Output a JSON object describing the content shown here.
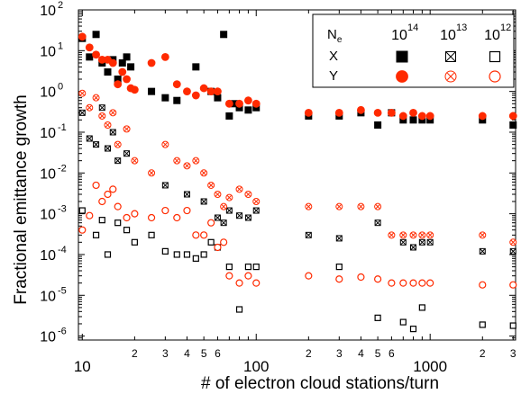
{
  "chart_data": {
    "type": "scatter",
    "xlabel": "# of electron cloud stations/turn",
    "ylabel": "Fractional emittance growth",
    "x_scale": "log",
    "y_scale": "log",
    "xlim": [
      9.5,
      3100
    ],
    "ylim": [
      8e-07,
      100
    ],
    "x_tick_labels": [
      {
        "v": 10,
        "t": "10",
        "major": true
      },
      {
        "v": 20,
        "t": "2"
      },
      {
        "v": 30,
        "t": "3"
      },
      {
        "v": 40,
        "t": "4"
      },
      {
        "v": 50,
        "t": "5"
      },
      {
        "v": 60,
        "t": "6"
      },
      {
        "v": 100,
        "t": "100",
        "major": true
      },
      {
        "v": 200,
        "t": "2"
      },
      {
        "v": 300,
        "t": "3"
      },
      {
        "v": 400,
        "t": "4"
      },
      {
        "v": 500,
        "t": "5"
      },
      {
        "v": 600,
        "t": "6"
      },
      {
        "v": 1000,
        "t": "1000",
        "major": true
      },
      {
        "v": 2000,
        "t": "2"
      },
      {
        "v": 3000,
        "t": "3"
      }
    ],
    "y_tick_labels": [
      {
        "v": 1e-06,
        "b": "10",
        "e": "-6"
      },
      {
        "v": 1e-05,
        "b": "10",
        "e": "-5"
      },
      {
        "v": 0.0001,
        "b": "10",
        "e": "-4"
      },
      {
        "v": 0.001,
        "b": "10",
        "e": "-3"
      },
      {
        "v": 0.01,
        "b": "10",
        "e": "-2"
      },
      {
        "v": 0.1,
        "b": "10",
        "e": "-1"
      },
      {
        "v": 1,
        "b": "10",
        "e": "0"
      },
      {
        "v": 10,
        "b": "10",
        "e": "1"
      },
      {
        "v": 100,
        "b": "10",
        "e": "2"
      }
    ],
    "legend": {
      "placement": "top-right",
      "header_label": "N",
      "header_sub": "e",
      "columns": [
        {
          "base": "10",
          "exp": "14"
        },
        {
          "base": "10",
          "exp": "13"
        },
        {
          "base": "10",
          "exp": "12"
        }
      ],
      "rows": [
        "X",
        "Y"
      ]
    },
    "colors": {
      "X": "#000000",
      "Y": "#ff2a00"
    },
    "series": [
      {
        "plane": "X",
        "ne": "1e14",
        "marker": "filled-square",
        "points": [
          [
            10,
            20
          ],
          [
            11,
            7
          ],
          [
            12,
            25
          ],
          [
            13,
            5
          ],
          [
            14,
            3
          ],
          [
            15,
            6
          ],
          [
            16,
            2
          ],
          [
            17,
            5
          ],
          [
            18,
            7
          ],
          [
            19,
            4
          ],
          [
            25,
            1
          ],
          [
            30,
            0.7
          ],
          [
            35,
            0.6
          ],
          [
            45,
            4
          ],
          [
            55,
            1
          ],
          [
            60,
            0.7
          ],
          [
            65,
            25
          ],
          [
            70,
            0.25
          ],
          [
            75,
            0.5
          ],
          [
            80,
            0.4
          ],
          [
            90,
            0.35
          ],
          [
            100,
            0.4
          ],
          [
            200,
            0.25
          ],
          [
            300,
            0.25
          ],
          [
            400,
            0.3
          ],
          [
            500,
            0.15
          ],
          [
            600,
            0.3
          ],
          [
            700,
            0.2
          ],
          [
            800,
            0.2
          ],
          [
            900,
            0.2
          ],
          [
            1000,
            0.2
          ],
          [
            2000,
            0.2
          ],
          [
            3000,
            0.15
          ]
        ]
      },
      {
        "plane": "X",
        "ne": "1e13",
        "marker": "crossed-square",
        "points": [
          [
            10,
            0.3
          ],
          [
            11,
            0.07
          ],
          [
            12,
            0.05
          ],
          [
            13,
            0.4
          ],
          [
            14,
            0.04
          ],
          [
            15,
            0.1
          ],
          [
            16,
            0.02
          ],
          [
            18,
            0.03
          ],
          [
            30,
            0.005
          ],
          [
            40,
            0.003
          ],
          [
            50,
            0.002
          ],
          [
            60,
            0.0008
          ],
          [
            65,
            0.0006
          ],
          [
            70,
            0.0012
          ],
          [
            80,
            0.0009
          ],
          [
            90,
            0.0008
          ],
          [
            100,
            0.0012
          ],
          [
            200,
            0.0003
          ],
          [
            300,
            0.00025
          ],
          [
            500,
            0.0006
          ],
          [
            700,
            0.0002
          ],
          [
            800,
            0.00015
          ],
          [
            900,
            0.0002
          ],
          [
            1000,
            0.0002
          ],
          [
            2000,
            0.00012
          ],
          [
            3000,
            0.00012
          ]
        ]
      },
      {
        "plane": "X",
        "ne": "1e12",
        "marker": "open-square",
        "points": [
          [
            10,
            0.0012
          ],
          [
            12,
            0.0003
          ],
          [
            13,
            0.0007
          ],
          [
            14,
            0.0001
          ],
          [
            16,
            0.0006
          ],
          [
            18,
            0.0004
          ],
          [
            20,
            0.0002
          ],
          [
            25,
            0.0003
          ],
          [
            30,
            0.00012
          ],
          [
            35,
            0.0001
          ],
          [
            40,
            0.0001
          ],
          [
            45,
            8e-05
          ],
          [
            50,
            0.0001
          ],
          [
            55,
            0.0002
          ],
          [
            60,
            0.00015
          ],
          [
            70,
            5e-05
          ],
          [
            80,
            4.5e-06
          ],
          [
            90,
            5e-05
          ],
          [
            100,
            5e-05
          ],
          [
            300,
            5e-05
          ],
          [
            500,
            2.8e-06
          ],
          [
            700,
            2.2e-06
          ],
          [
            800,
            1.5e-06
          ],
          [
            900,
            5e-06
          ],
          [
            2000,
            1.9e-06
          ],
          [
            3000,
            1.8e-06
          ]
        ]
      },
      {
        "plane": "Y",
        "ne": "1e14",
        "marker": "filled-circle",
        "points": [
          [
            10,
            22
          ],
          [
            11,
            12
          ],
          [
            12,
            8
          ],
          [
            13,
            6
          ],
          [
            14,
            6
          ],
          [
            15,
            5
          ],
          [
            16,
            1.5
          ],
          [
            17,
            3
          ],
          [
            18,
            2
          ],
          [
            19,
            1.2
          ],
          [
            20,
            1.1
          ],
          [
            25,
            5
          ],
          [
            30,
            7
          ],
          [
            35,
            1.5
          ],
          [
            40,
            1
          ],
          [
            45,
            0.8
          ],
          [
            50,
            1.2
          ],
          [
            55,
            1
          ],
          [
            60,
            1
          ],
          [
            70,
            0.5
          ],
          [
            80,
            0.5
          ],
          [
            90,
            0.6
          ],
          [
            100,
            0.5
          ],
          [
            200,
            0.3
          ],
          [
            300,
            0.3
          ],
          [
            400,
            0.35
          ],
          [
            500,
            0.3
          ],
          [
            600,
            0.3
          ],
          [
            700,
            0.25
          ],
          [
            800,
            0.3
          ],
          [
            900,
            0.25
          ],
          [
            1000,
            0.25
          ],
          [
            2000,
            0.25
          ],
          [
            3000,
            0.25
          ]
        ]
      },
      {
        "plane": "Y",
        "ne": "1e13",
        "marker": "crossed-circle",
        "points": [
          [
            10,
            0.9
          ],
          [
            11,
            0.4
          ],
          [
            12,
            0.7
          ],
          [
            13,
            0.25
          ],
          [
            14,
            0.15
          ],
          [
            15,
            0.3
          ],
          [
            16,
            0.05
          ],
          [
            18,
            0.12
          ],
          [
            20,
            0.02
          ],
          [
            25,
            0.01
          ],
          [
            30,
            0.05
          ],
          [
            35,
            0.02
          ],
          [
            40,
            0.015
          ],
          [
            45,
            0.02
          ],
          [
            50,
            0.01
          ],
          [
            55,
            0.005
          ],
          [
            60,
            0.003
          ],
          [
            65,
            0.0015
          ],
          [
            70,
            0.0025
          ],
          [
            80,
            0.004
          ],
          [
            90,
            0.003
          ],
          [
            100,
            0.002
          ],
          [
            200,
            0.0015
          ],
          [
            300,
            0.0015
          ],
          [
            400,
            0.0015
          ],
          [
            500,
            0.0015
          ],
          [
            600,
            0.0003
          ],
          [
            700,
            0.0003
          ],
          [
            800,
            0.0003
          ],
          [
            900,
            0.0003
          ],
          [
            1000,
            0.0003
          ],
          [
            2000,
            0.0003
          ],
          [
            3000,
            0.0002
          ]
        ]
      },
      {
        "plane": "Y",
        "ne": "1e12",
        "marker": "open-circle",
        "points": [
          [
            10,
            0.0004
          ],
          [
            11,
            0.0009
          ],
          [
            12,
            0.005
          ],
          [
            13,
            0.002
          ],
          [
            14,
            0.003
          ],
          [
            15,
            0.004
          ],
          [
            16,
            0.0015
          ],
          [
            18,
            0.0008
          ],
          [
            20,
            0.001
          ],
          [
            25,
            0.0008
          ],
          [
            30,
            0.0012
          ],
          [
            35,
            0.0008
          ],
          [
            40,
            0.0012
          ],
          [
            45,
            0.0003
          ],
          [
            50,
            0.0003
          ],
          [
            55,
            0.0006
          ],
          [
            60,
            0.00015
          ],
          [
            65,
            0.0002
          ],
          [
            70,
            3e-05
          ],
          [
            80,
            2e-05
          ],
          [
            90,
            3e-05
          ],
          [
            100,
            2e-05
          ],
          [
            200,
            3e-05
          ],
          [
            300,
            2.5e-05
          ],
          [
            400,
            2.8e-05
          ],
          [
            500,
            2.5e-05
          ],
          [
            600,
            2e-05
          ],
          [
            700,
            2e-05
          ],
          [
            800,
            2e-05
          ],
          [
            900,
            2e-05
          ],
          [
            1000,
            2e-05
          ],
          [
            2000,
            1.8e-05
          ],
          [
            3000,
            1.8e-05
          ]
        ]
      }
    ]
  }
}
